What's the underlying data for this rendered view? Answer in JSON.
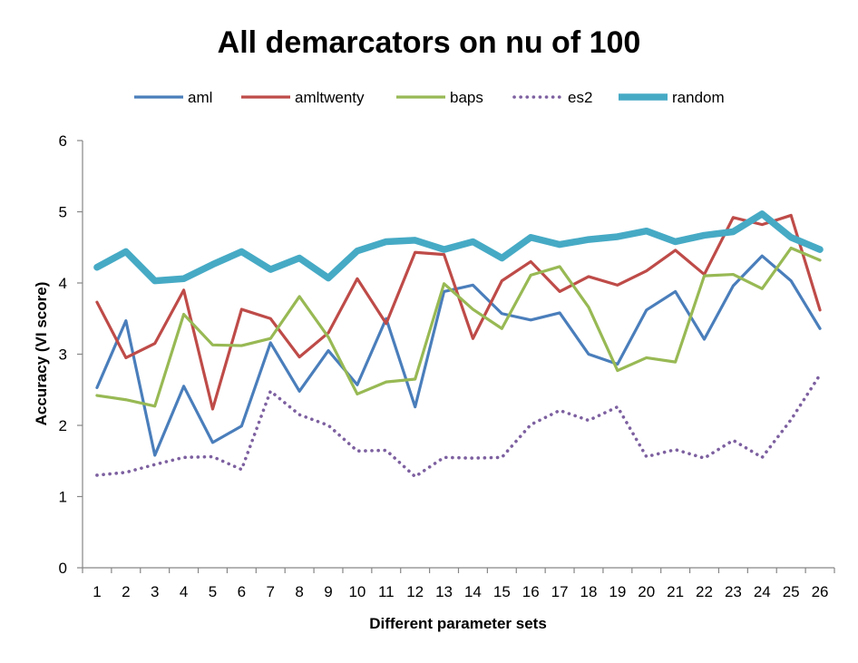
{
  "chart_data": {
    "type": "line",
    "title": "All demarcators on nu of 100",
    "xlabel": "Different parameter sets",
    "ylabel": "Accuracy (VI score)",
    "ylim": [
      0,
      6
    ],
    "yticks": [
      0,
      1,
      2,
      3,
      4,
      5,
      6
    ],
    "grid": false,
    "legend_position": "top",
    "categories": [
      "1",
      "2",
      "3",
      "4",
      "5",
      "6",
      "7",
      "8",
      "9",
      "10",
      "11",
      "12",
      "13",
      "14",
      "15",
      "16",
      "17",
      "18",
      "19",
      "20",
      "21",
      "22",
      "23",
      "24",
      "25",
      "26"
    ],
    "series": [
      {
        "name": "aml",
        "color": "#4a7ebb",
        "style": "solid",
        "width": "medium",
        "values": [
          2.53,
          3.47,
          1.58,
          2.55,
          1.76,
          1.99,
          3.16,
          2.48,
          3.05,
          2.57,
          3.5,
          2.26,
          3.88,
          3.97,
          3.57,
          3.48,
          3.58,
          3.0,
          2.86,
          3.62,
          3.88,
          3.21,
          3.96,
          4.38,
          4.03,
          3.36
        ]
      },
      {
        "name": "amltwenty",
        "color": "#be4b48",
        "style": "solid",
        "width": "medium",
        "values": [
          3.73,
          2.95,
          3.15,
          3.9,
          2.23,
          3.63,
          3.5,
          2.96,
          3.3,
          4.06,
          3.43,
          4.43,
          4.4,
          3.22,
          4.03,
          4.3,
          3.88,
          4.09,
          3.97,
          4.17,
          4.46,
          4.12,
          4.92,
          4.82,
          4.95,
          3.62
        ]
      },
      {
        "name": "baps",
        "color": "#98b954",
        "style": "solid",
        "width": "medium",
        "values": [
          2.42,
          2.36,
          2.27,
          3.56,
          3.13,
          3.12,
          3.22,
          3.81,
          3.24,
          2.44,
          2.61,
          2.65,
          3.99,
          3.63,
          3.36,
          4.11,
          4.23,
          3.66,
          2.77,
          2.95,
          2.89,
          4.1,
          4.12,
          3.92,
          4.49,
          4.32
        ]
      },
      {
        "name": "es2",
        "color": "#7d60a0",
        "style": "dotted",
        "width": "medium",
        "values": [
          1.3,
          1.34,
          1.45,
          1.55,
          1.56,
          1.38,
          2.48,
          2.15,
          2.0,
          1.64,
          1.65,
          1.28,
          1.55,
          1.54,
          1.55,
          2.01,
          2.21,
          2.07,
          2.26,
          1.56,
          1.66,
          1.54,
          1.79,
          1.55,
          2.08,
          2.71
        ]
      },
      {
        "name": "random",
        "color": "#46aac5",
        "style": "solid",
        "width": "thick",
        "values": [
          4.22,
          4.44,
          4.03,
          4.06,
          4.26,
          4.44,
          4.19,
          4.35,
          4.07,
          4.45,
          4.58,
          4.6,
          4.47,
          4.58,
          4.35,
          4.64,
          4.54,
          4.61,
          4.65,
          4.73,
          4.58,
          4.67,
          4.72,
          4.97,
          4.64,
          4.47
        ]
      }
    ]
  }
}
